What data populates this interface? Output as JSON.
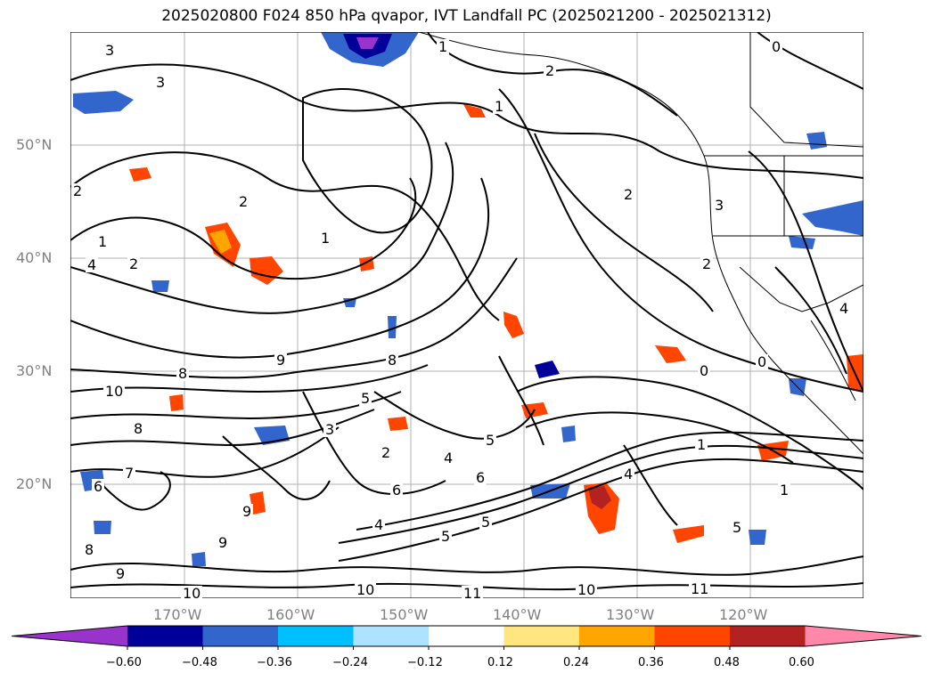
{
  "title": "2025020800 F024 850 hPa qvapor, IVT Landfall PC (2025021200 - 2025021312)",
  "axes": {
    "lat_labels": [
      "50°N",
      "40°N",
      "30°N",
      "20°N"
    ],
    "lon_labels": [
      "170°W",
      "160°W",
      "150°W",
      "140°W",
      "130°W",
      "120°W"
    ]
  },
  "colorbar": {
    "ticks": [
      "−0.60",
      "−0.48",
      "−0.36",
      "−0.24",
      "−0.12",
      "0.12",
      "0.24",
      "0.36",
      "0.48",
      "0.60"
    ],
    "colors": [
      "#9933cc",
      "#000099",
      "#3366cc",
      "#00bfff",
      "#aee3ff",
      "#ffffff",
      "#ffe680",
      "#ffa500",
      "#ff4500",
      "#b22222",
      "#ff88aa"
    ]
  },
  "contour_labels": [
    "3",
    "1",
    "3",
    "1",
    "2",
    "0",
    "2",
    "2",
    "2",
    "1",
    "4",
    "2",
    "1",
    "9",
    "8",
    "10",
    "5",
    "3",
    "2",
    "4",
    "6",
    "2",
    "1",
    "0",
    "0",
    "3",
    "4",
    "5",
    "4",
    "6",
    "5",
    "4",
    "10",
    "10",
    "11",
    "10",
    "11",
    "5",
    "1",
    "5",
    "8",
    "9",
    "9",
    "8",
    "8",
    "7",
    "6",
    "9"
  ]
}
